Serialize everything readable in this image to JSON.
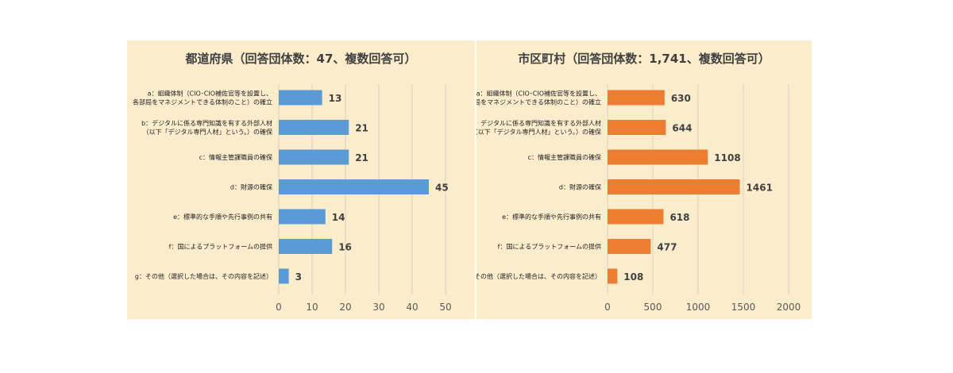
{
  "chart_data": [
    {
      "type": "bar",
      "orientation": "horizontal",
      "title": "都道府県（回答団体数：47、複数回答可）",
      "categories": [
        [
          "a：組織体制（CIO･CIO補佐官等を設置し、",
          "各部局をマネジメントできる体制のこと）の確立"
        ],
        [
          "b：デジタルに係る専門知識を有する外部人材",
          "（以下「デジタル専門人材」という。）の確保"
        ],
        [
          "c：情報主管課職員の確保"
        ],
        [
          "d：財源の確保"
        ],
        [
          "e：標準的な手順や先行事例の共有"
        ],
        [
          "f：国によるプラットフォームの提供"
        ],
        [
          "g：その他（選択した場合は、その内容を記述）"
        ]
      ],
      "values": [
        13,
        21,
        21,
        45,
        14,
        16,
        3
      ],
      "xlim": [
        0,
        50
      ],
      "xticks": [
        0,
        10,
        20,
        30,
        40,
        50
      ],
      "grid": true,
      "bar_color": "#5b9bd5"
    },
    {
      "type": "bar",
      "orientation": "horizontal",
      "title": "市区町村（回答団体数：1,741、複数回答可）",
      "categories": [
        [
          "a：組織体制（CIO･CIO補佐官等を設置し、",
          "各部局をマネジメントできる体制のこと）の確立"
        ],
        [
          "b：デジタルに係る専門知識を有する外部人材",
          "（以下「デジタル専門人材」という。）の確保"
        ],
        [
          "c：情報主管課職員の確保"
        ],
        [
          "d：財源の確保"
        ],
        [
          "e：標準的な手順や先行事例の共有"
        ],
        [
          "f：国によるプラットフォームの提供"
        ],
        [
          "g：その他（選択した場合は、その内容を記述）"
        ]
      ],
      "values": [
        630,
        644,
        1108,
        1461,
        618,
        477,
        108
      ],
      "xlim": [
        0,
        2000
      ],
      "xticks": [
        0,
        500,
        1000,
        1500,
        2000
      ],
      "grid": true,
      "bar_color": "#ed7d31"
    }
  ]
}
